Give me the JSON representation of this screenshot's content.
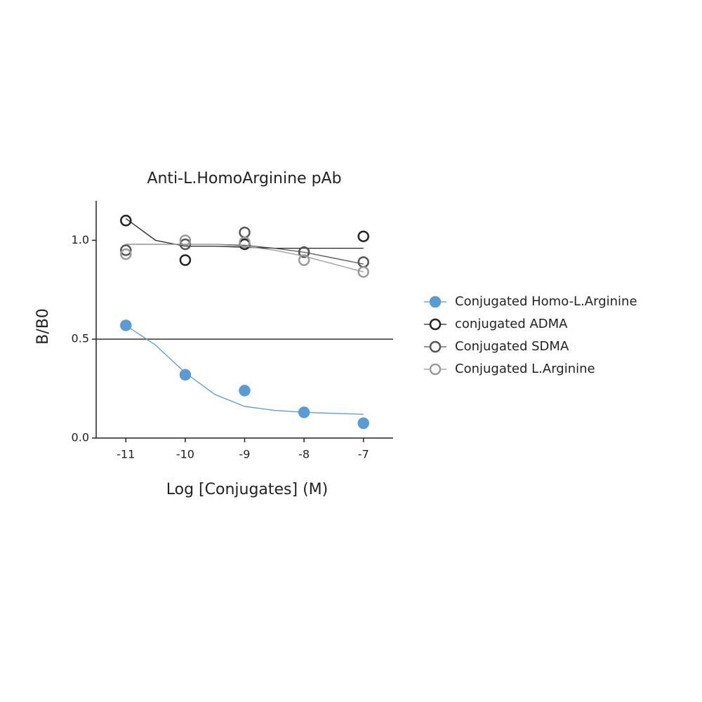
{
  "chart_data": {
    "type": "scatter",
    "title": "Anti-L.HomoArginine pAb",
    "x_label": "Log [Conjugates] (M)",
    "y_label": "B/B0",
    "x": [
      -11,
      -10,
      -9,
      -8,
      -7
    ],
    "series": [
      {
        "name": "Conjugated Homo-L.Arginine",
        "color": "#5b9bd5",
        "filled": true,
        "values": [
          0.57,
          0.32,
          0.24,
          0.13,
          0.075
        ],
        "fit_values": [
          0.57,
          0.47,
          0.33,
          0.22,
          0.16,
          0.14,
          0.13,
          0.125,
          0.12
        ]
      },
      {
        "name": "conjugated ADMA",
        "color": "#222222",
        "filled": false,
        "values": [
          1.1,
          0.9,
          0.98,
          0.94,
          1.02
        ],
        "fit_values": [
          1.11,
          1.0,
          0.97,
          0.97,
          0.965,
          0.96,
          0.96,
          0.96,
          0.96
        ]
      },
      {
        "name": "Conjugated SDMA",
        "color": "#555555",
        "filled": false,
        "values": [
          0.95,
          0.98,
          1.04,
          0.94,
          0.89
        ],
        "fit_values": [
          0.98,
          0.98,
          0.98,
          0.98,
          0.975,
          0.96,
          0.94,
          0.91,
          0.88
        ]
      },
      {
        "name": "Conjugated L.Arginine",
        "color": "#999999",
        "filled": false,
        "values": [
          0.93,
          1.0,
          0.99,
          0.9,
          0.84
        ],
        "fit_values": [
          0.98,
          0.98,
          0.98,
          0.98,
          0.97,
          0.95,
          0.92,
          0.88,
          0.84
        ]
      }
    ],
    "fit_x": [
      -11,
      -10.5,
      -10,
      -9.5,
      -9,
      -8.5,
      -8,
      -7.5,
      -7
    ],
    "reference_line": 0.5,
    "xlim": [
      -11.5,
      -6.5
    ],
    "ylim": [
      0,
      1.2
    ],
    "xticks": [
      -11,
      -10,
      -9,
      -8,
      -7
    ],
    "yticks": [
      {
        "value": 0,
        "label": "0.0"
      },
      {
        "value": 0.5,
        "label": "0.5"
      },
      {
        "value": 1,
        "label": "1.0"
      }
    ],
    "legend": "right"
  }
}
